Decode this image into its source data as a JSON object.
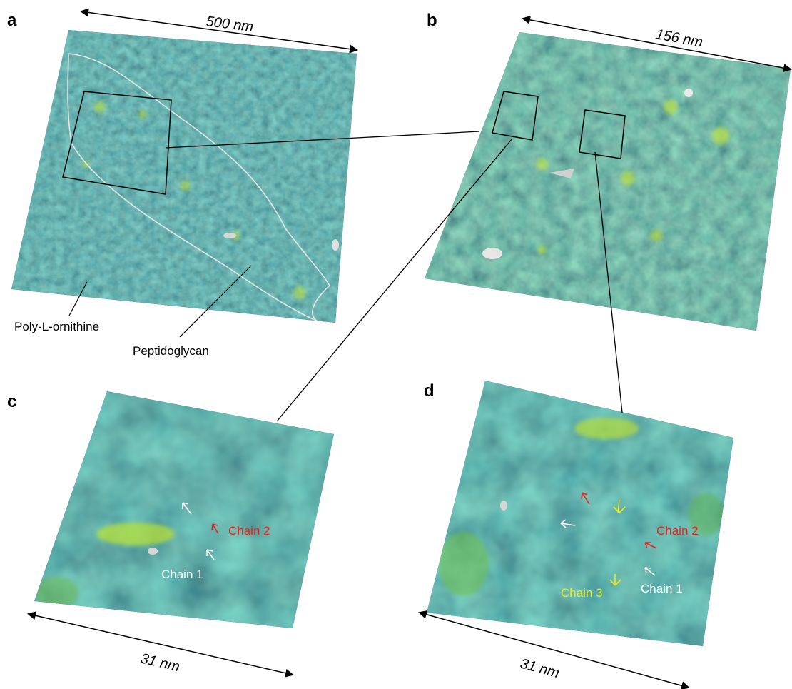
{
  "panels": {
    "a": {
      "letter": "a",
      "scale": "500 nm"
    },
    "b": {
      "letter": "b",
      "scale": "156 nm"
    },
    "c": {
      "letter": "c",
      "scale": "31 nm"
    },
    "d": {
      "letter": "d",
      "scale": "31 nm"
    }
  },
  "callouts": {
    "poly": "Poly-L-ornithine",
    "pepti": "Peptidoglycan"
  },
  "chains": {
    "c_chain1": "Chain 1",
    "c_chain2": "Chain 2",
    "d_chain1": "Chain 1",
    "d_chain2": "Chain 2",
    "d_chain3": "Chain 3"
  },
  "colors": {
    "surface_dark": "#0f3a48",
    "surface_mid": "#1e6f7c",
    "surface_light": "#3f9a86",
    "highlight_green": "#c8e632",
    "chain_white": "#ffffff",
    "chain_red": "#e8251d",
    "chain_yellow": "#f4ea1a",
    "outline": "#e6e6e6"
  }
}
